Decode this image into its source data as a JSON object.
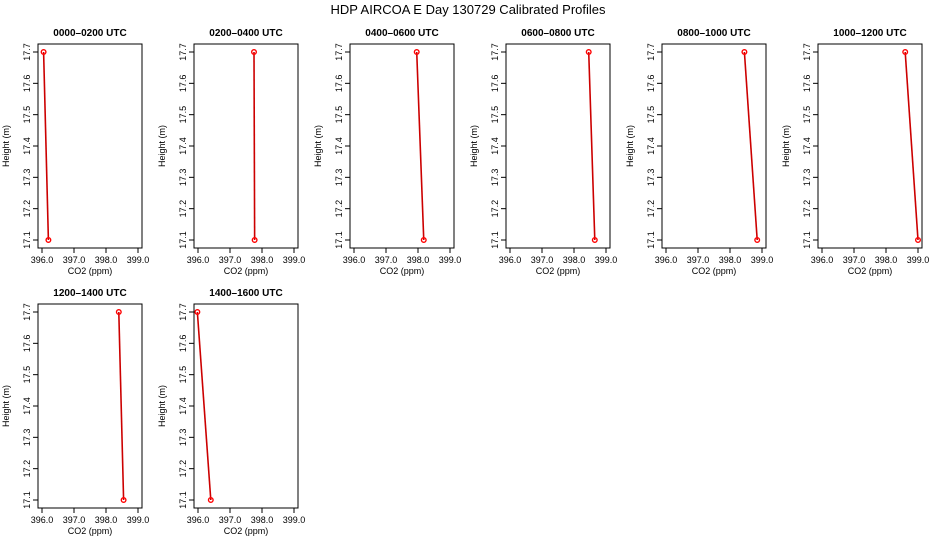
{
  "figure": {
    "title": "HDP AIRCOA E  Day 130729  Calibrated Profiles"
  },
  "style": {
    "line_color": "#cc0000",
    "point_color": "#ff0000",
    "axis_color": "#000000"
  },
  "chart_data": [
    {
      "type": "line",
      "title": "0000–0200 UTC",
      "xlabel": "CO2 (ppm)",
      "ylabel": "Height (m)",
      "xlim": [
        396.0,
        399.0
      ],
      "ylim": [
        17.1,
        17.7
      ],
      "xticks": [
        "396.0",
        "397.0",
        "398.0",
        "399.0"
      ],
      "yticks": [
        "17.1",
        "17.2",
        "17.3",
        "17.4",
        "17.5",
        "17.6",
        "17.7"
      ],
      "points": [
        {
          "x": 396.05,
          "y": 17.7
        },
        {
          "x": 396.2,
          "y": 17.1
        }
      ]
    },
    {
      "type": "line",
      "title": "0200–0400 UTC",
      "xlabel": "CO2 (ppm)",
      "ylabel": "Height (m)",
      "xlim": [
        396.0,
        399.0
      ],
      "ylim": [
        17.1,
        17.7
      ],
      "xticks": [
        "396.0",
        "397.0",
        "398.0",
        "399.0"
      ],
      "yticks": [
        "17.1",
        "17.2",
        "17.3",
        "17.4",
        "17.5",
        "17.6",
        "17.7"
      ],
      "points": [
        {
          "x": 397.75,
          "y": 17.7
        },
        {
          "x": 397.77,
          "y": 17.1
        }
      ]
    },
    {
      "type": "line",
      "title": "0400–0600 UTC",
      "xlabel": "CO2 (ppm)",
      "ylabel": "Height (m)",
      "xlim": [
        396.0,
        399.0
      ],
      "ylim": [
        17.1,
        17.7
      ],
      "xticks": [
        "396.0",
        "397.0",
        "398.0",
        "399.0"
      ],
      "yticks": [
        "17.1",
        "17.2",
        "17.3",
        "17.4",
        "17.5",
        "17.6",
        "17.7"
      ],
      "points": [
        {
          "x": 397.96,
          "y": 17.7
        },
        {
          "x": 398.18,
          "y": 17.1
        }
      ]
    },
    {
      "type": "line",
      "title": "0600–0800 UTC",
      "xlabel": "CO2 (ppm)",
      "ylabel": "Height (m)",
      "xlim": [
        396.0,
        399.0
      ],
      "ylim": [
        17.1,
        17.7
      ],
      "xticks": [
        "396.0",
        "397.0",
        "398.0",
        "399.0"
      ],
      "yticks": [
        "17.1",
        "17.2",
        "17.3",
        "17.4",
        "17.5",
        "17.6",
        "17.7"
      ],
      "points": [
        {
          "x": 398.46,
          "y": 17.7
        },
        {
          "x": 398.65,
          "y": 17.1
        }
      ]
    },
    {
      "type": "line",
      "title": "0800–1000 UTC",
      "xlabel": "CO2 (ppm)",
      "ylabel": "Height (m)",
      "xlim": [
        396.0,
        399.0
      ],
      "ylim": [
        17.1,
        17.7
      ],
      "xticks": [
        "396.0",
        "397.0",
        "398.0",
        "399.0"
      ],
      "yticks": [
        "17.1",
        "17.2",
        "17.3",
        "17.4",
        "17.5",
        "17.6",
        "17.7"
      ],
      "points": [
        {
          "x": 398.45,
          "y": 17.7
        },
        {
          "x": 398.85,
          "y": 17.1
        }
      ]
    },
    {
      "type": "line",
      "title": "1000–1200 UTC",
      "xlabel": "CO2 (ppm)",
      "ylabel": "Height (m)",
      "xlim": [
        396.0,
        399.0
      ],
      "ylim": [
        17.1,
        17.7
      ],
      "xticks": [
        "396.0",
        "397.0",
        "398.0",
        "399.0"
      ],
      "yticks": [
        "17.1",
        "17.2",
        "17.3",
        "17.4",
        "17.5",
        "17.6",
        "17.7"
      ],
      "points": [
        {
          "x": 398.6,
          "y": 17.7
        },
        {
          "x": 399.0,
          "y": 17.1
        }
      ]
    },
    {
      "type": "line",
      "title": "1200–1400 UTC",
      "xlabel": "CO2 (ppm)",
      "ylabel": "Height (m)",
      "xlim": [
        396.0,
        399.0
      ],
      "ylim": [
        17.1,
        17.7
      ],
      "xticks": [
        "396.0",
        "397.0",
        "398.0",
        "399.0"
      ],
      "yticks": [
        "17.1",
        "17.2",
        "17.3",
        "17.4",
        "17.5",
        "17.6",
        "17.7"
      ],
      "points": [
        {
          "x": 398.4,
          "y": 17.7
        },
        {
          "x": 398.55,
          "y": 17.1
        }
      ]
    },
    {
      "type": "line",
      "title": "1400–1600 UTC",
      "xlabel": "CO2 (ppm)",
      "ylabel": "Height (m)",
      "xlim": [
        396.0,
        399.0
      ],
      "ylim": [
        17.1,
        17.7
      ],
      "xticks": [
        "396.0",
        "397.0",
        "398.0",
        "399.0"
      ],
      "yticks": [
        "17.1",
        "17.2",
        "17.3",
        "17.4",
        "17.5",
        "17.6",
        "17.7"
      ],
      "points": [
        {
          "x": 395.98,
          "y": 17.7
        },
        {
          "x": 396.4,
          "y": 17.1
        }
      ]
    }
  ]
}
